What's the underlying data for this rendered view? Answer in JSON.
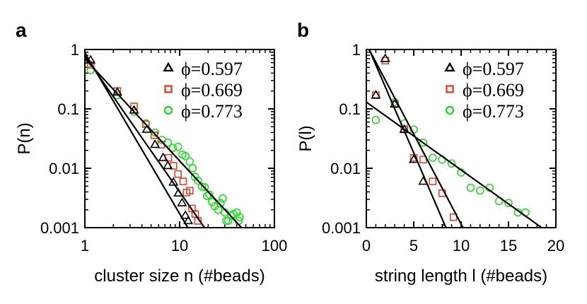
{
  "colors": {
    "black": "#000000",
    "red": "#e8412c",
    "green": "#22dd22"
  },
  "chart_data": [
    {
      "type": "scatter",
      "panel_letter": "a",
      "xscale": "log",
      "yscale": "log",
      "xlim": [
        1,
        100
      ],
      "ylim": [
        0.001,
        1
      ],
      "xticks": [
        1,
        10,
        100
      ],
      "xtick_labels": [
        "1",
        "10",
        "100"
      ],
      "yticks": [
        1,
        0.1,
        0.01,
        0.001
      ],
      "ytick_labels": [
        "1",
        "0.1",
        "0.01",
        "0.001"
      ],
      "xlabel": "cluster size n (#beads)",
      "ylabel": "P(n)",
      "legend_position": "top-right",
      "series": [
        {
          "name": "ϕ=0.597",
          "marker": "triangle",
          "color": "#000000",
          "points": [
            [
              1.15,
              0.66
            ],
            [
              2.2,
              0.19
            ],
            [
              3.3,
              0.095
            ],
            [
              4.5,
              0.045
            ],
            [
              5.5,
              0.025
            ],
            [
              6.7,
              0.015
            ],
            [
              7.5,
              0.011
            ],
            [
              8.6,
              0.0058
            ],
            [
              9.7,
              0.0038
            ],
            [
              10.6,
              0.0026
            ],
            [
              11.5,
              0.0016
            ],
            [
              12.3,
              0.0013
            ]
          ],
          "fit": [
            [
              1.0,
              0.88
            ],
            [
              12.2,
              0.001
            ]
          ]
        },
        {
          "name": "ϕ=0.669",
          "marker": "square",
          "color": "#e8412c",
          "points": [
            [
              1.15,
              0.55
            ],
            [
              2.2,
              0.2
            ],
            [
              3.3,
              0.11
            ],
            [
              4.4,
              0.055
            ],
            [
              5.4,
              0.036
            ],
            [
              6.4,
              0.025
            ],
            [
              7.6,
              0.015
            ],
            [
              8.6,
              0.011
            ],
            [
              9.6,
              0.008
            ],
            [
              10.9,
              0.006
            ],
            [
              11.8,
              0.0039
            ],
            [
              12.8,
              0.0042
            ],
            [
              13.5,
              0.0021
            ],
            [
              14.6,
              0.0017
            ],
            [
              15.6,
              0.0013
            ]
          ],
          "fit": [
            [
              1.0,
              0.78
            ],
            [
              18.3,
              0.001
            ]
          ]
        },
        {
          "name": "ϕ=0.773",
          "marker": "circle",
          "color": "#22dd22",
          "points": [
            [
              1.15,
              0.45
            ],
            [
              2.2,
              0.17
            ],
            [
              3.3,
              0.09
            ],
            [
              4.4,
              0.057
            ],
            [
              5.5,
              0.04
            ],
            [
              6.5,
              0.03
            ],
            [
              7.5,
              0.027
            ],
            [
              8.5,
              0.022
            ],
            [
              9.6,
              0.023
            ],
            [
              10.7,
              0.017
            ],
            [
              11.5,
              0.016
            ],
            [
              12.8,
              0.013
            ],
            [
              13.7,
              0.01
            ],
            [
              14.5,
              0.0072
            ],
            [
              15.6,
              0.0062
            ],
            [
              17.2,
              0.0049
            ],
            [
              18.4,
              0.0048
            ],
            [
              19.5,
              0.0034
            ],
            [
              20.5,
              0.0036
            ],
            [
              22,
              0.0027
            ],
            [
              23.5,
              0.0023
            ],
            [
              25.5,
              0.002
            ],
            [
              27,
              0.0026
            ],
            [
              28.5,
              0.0031
            ],
            [
              30,
              0.0018
            ],
            [
              31,
              0.0013
            ],
            [
              32.5,
              0.0013
            ],
            [
              35,
              0.0016
            ],
            [
              37,
              0.0017
            ],
            [
              40,
              0.0018
            ],
            [
              42,
              0.0013
            ],
            [
              43,
              0.0015
            ]
          ],
          "fit": [
            [
              1.0,
              0.7
            ],
            [
              45,
              0.001
            ]
          ]
        }
      ]
    },
    {
      "type": "scatter",
      "panel_letter": "b",
      "xscale": "linear",
      "yscale": "log",
      "xlim": [
        0,
        20
      ],
      "ylim": [
        0.001,
        1
      ],
      "xticks": [
        0,
        5,
        10,
        15,
        20
      ],
      "xtick_labels": [
        "0",
        "5",
        "10",
        "15",
        "20"
      ],
      "yticks": [
        1,
        0.1,
        0.01,
        0.001
      ],
      "ytick_labels": [
        "1",
        "0.1",
        "0.01",
        "0.001"
      ],
      "xlabel": "string length l (#beads)",
      "ylabel": "P(l)",
      "legend_position": "top-right",
      "series": [
        {
          "name": "ϕ=0.597",
          "marker": "triangle",
          "color": "#000000",
          "points": [
            [
              1,
              0.17
            ],
            [
              2,
              0.7
            ],
            [
              3,
              0.12
            ],
            [
              4,
              0.045
            ],
            [
              5,
              0.014
            ],
            [
              6,
              0.006
            ],
            [
              8.2,
              0.001
            ]
          ],
          "fit": [
            [
              0.3,
              1.0
            ],
            [
              8.4,
              0.001
            ]
          ]
        },
        {
          "name": "ϕ=0.669",
          "marker": "square",
          "color": "#e8412c",
          "points": [
            [
              1,
              0.17
            ],
            [
              2,
              0.65
            ],
            [
              3,
              0.12
            ],
            [
              4,
              0.045
            ],
            [
              5,
              0.015
            ],
            [
              6,
              0.014
            ],
            [
              7,
              0.006
            ],
            [
              8,
              0.0038
            ],
            [
              9.2,
              0.0015
            ]
          ],
          "fit": [
            [
              0.3,
              1.0
            ],
            [
              10.2,
              0.001
            ]
          ]
        },
        {
          "name": "ϕ=0.773",
          "marker": "circle",
          "color": "#22dd22",
          "points": [
            [
              1,
              0.065
            ],
            [
              3,
              0.13
            ],
            [
              4,
              0.057
            ],
            [
              5,
              0.045
            ],
            [
              6,
              0.027
            ],
            [
              7,
              0.015
            ],
            [
              8,
              0.014
            ],
            [
              9,
              0.012
            ],
            [
              10,
              0.0085
            ],
            [
              11,
              0.0047
            ],
            [
              12,
              0.0042
            ],
            [
              13,
              0.0047
            ],
            [
              14,
              0.0028
            ],
            [
              15,
              0.0026
            ],
            [
              16,
              0.0018
            ],
            [
              16.8,
              0.0018
            ]
          ],
          "fit": [
            [
              0,
              0.13
            ],
            [
              18.5,
              0.001
            ]
          ]
        }
      ]
    }
  ]
}
